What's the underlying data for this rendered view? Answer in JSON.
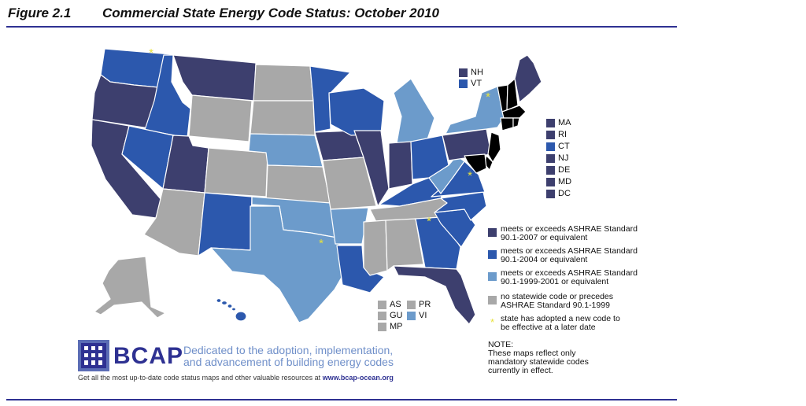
{
  "title": {
    "figure": "Figure 2.1",
    "text": "Commercial State Energy Code Status:  October 2010"
  },
  "colors": {
    "cat_2007": "#3d3f6e",
    "cat_2004": "#2c58ad",
    "cat_1999": "#6c9bcb",
    "cat_none": "#a8a8a8",
    "star": "#e8e23a",
    "brand": "#2e3192"
  },
  "northeast_keys": [
    {
      "label": "NH",
      "category": "cat_2007"
    },
    {
      "label": "VT",
      "category": "cat_2004"
    }
  ],
  "midatlantic_keys": [
    {
      "label": "MA",
      "category": "cat_2007"
    },
    {
      "label": "RI",
      "category": "cat_2007"
    },
    {
      "label": "CT",
      "category": "cat_2004"
    },
    {
      "label": "NJ",
      "category": "cat_2007"
    },
    {
      "label": "DE",
      "category": "cat_2007"
    },
    {
      "label": "MD",
      "category": "cat_2007"
    },
    {
      "label": "DC",
      "category": "cat_2007"
    }
  ],
  "legend": [
    {
      "category": "cat_2007",
      "line1": "meets or exceeds ASHRAE Standard",
      "line2": "90.1-2007 or equivalent"
    },
    {
      "category": "cat_2004",
      "line1": "meets or exceeds ASHRAE Standard",
      "line2": "90.1-2004 or equivalent"
    },
    {
      "category": "cat_1999",
      "line1": "meets or exceeds ASHRAE Standard",
      "line2": "90.1-1999-2001 or equivalent"
    },
    {
      "category": "cat_none",
      "line1": "no statewide code or precedes",
      "line2": "ASHRAE Standard 90.1-1999"
    }
  ],
  "star_legend": {
    "line1": "state has adopted a new code to",
    "line2": "be effective at a later date"
  },
  "note": {
    "heading": "NOTE:",
    "line1": "These maps reflect only",
    "line2": "mandatory statewide codes",
    "line3": "currently in effect."
  },
  "territories": [
    {
      "label": "AS",
      "category": "cat_none"
    },
    {
      "label": "GU",
      "category": "cat_none"
    },
    {
      "label": "MP",
      "category": "cat_none"
    },
    {
      "label": "PR",
      "category": "cat_none"
    },
    {
      "label": "VI",
      "category": "cat_1999"
    }
  ],
  "branding": {
    "name": "BCAP",
    "tagline1": "Dedicated to the adoption, implementation,",
    "tagline2": "and advancement of building energy codes",
    "footer": "Get all the most up-to-date code status maps and other valuable resources at",
    "url": "www.bcap-ocean.org"
  },
  "states": [
    {
      "id": "WA",
      "category": "cat_2004",
      "star": true
    },
    {
      "id": "OR",
      "category": "cat_2007"
    },
    {
      "id": "CA",
      "category": "cat_2007"
    },
    {
      "id": "ID",
      "category": "cat_2004"
    },
    {
      "id": "NV",
      "category": "cat_2004"
    },
    {
      "id": "MT",
      "category": "cat_2007"
    },
    {
      "id": "WY",
      "category": "cat_none"
    },
    {
      "id": "UT",
      "category": "cat_2007"
    },
    {
      "id": "AZ",
      "category": "cat_none"
    },
    {
      "id": "CO",
      "category": "cat_none"
    },
    {
      "id": "NM",
      "category": "cat_2004"
    },
    {
      "id": "ND",
      "category": "cat_none"
    },
    {
      "id": "SD",
      "category": "cat_none"
    },
    {
      "id": "NE",
      "category": "cat_1999"
    },
    {
      "id": "KS",
      "category": "cat_none"
    },
    {
      "id": "OK",
      "category": "cat_1999"
    },
    {
      "id": "TX",
      "category": "cat_1999",
      "star": true
    },
    {
      "id": "MN",
      "category": "cat_2004"
    },
    {
      "id": "IA",
      "category": "cat_2007"
    },
    {
      "id": "MO",
      "category": "cat_none"
    },
    {
      "id": "AR",
      "category": "cat_1999"
    },
    {
      "id": "LA",
      "category": "cat_2004"
    },
    {
      "id": "WI",
      "category": "cat_2004"
    },
    {
      "id": "IL",
      "category": "cat_2007"
    },
    {
      "id": "MI",
      "category": "cat_1999"
    },
    {
      "id": "IN",
      "category": "cat_2007"
    },
    {
      "id": "OH",
      "category": "cat_2004"
    },
    {
      "id": "KY",
      "category": "cat_2004"
    },
    {
      "id": "TN",
      "category": "cat_none"
    },
    {
      "id": "MS",
      "category": "cat_none"
    },
    {
      "id": "AL",
      "category": "cat_none"
    },
    {
      "id": "GA",
      "category": "cat_2004",
      "star": true
    },
    {
      "id": "FL",
      "category": "cat_2007"
    },
    {
      "id": "SC",
      "category": "cat_2004"
    },
    {
      "id": "NC",
      "category": "cat_2004"
    },
    {
      "id": "VA",
      "category": "cat_2004",
      "star": true
    },
    {
      "id": "WV",
      "category": "cat_1999"
    },
    {
      "id": "PA",
      "category": "cat_2007"
    },
    {
      "id": "NY",
      "category": "cat_1999",
      "star": true
    },
    {
      "id": "ME",
      "category": "cat_2007"
    },
    {
      "id": "AK",
      "category": "cat_none"
    },
    {
      "id": "HI",
      "category": "cat_2004"
    }
  ]
}
